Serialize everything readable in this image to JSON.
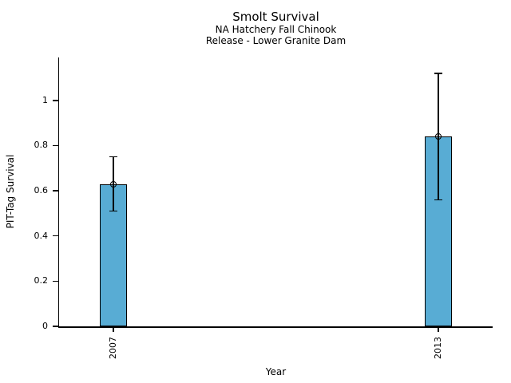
{
  "chart_data": {
    "type": "bar",
    "title": "Smolt Survival",
    "subtitle_line1": "NA Hatchery Fall Chinook",
    "subtitle_line2": "Release - Lower Granite Dam",
    "xlabel": "Year",
    "ylabel": "PIT-Tag Survival",
    "categories": [
      "2007",
      "2013"
    ],
    "x": [
      2007,
      2013
    ],
    "values": [
      0.63,
      0.84
    ],
    "error_low": [
      0.51,
      0.56
    ],
    "error_high": [
      0.75,
      1.12
    ],
    "marker": "open-circle",
    "bar_color": "#58ACD4",
    "bar_edge_color": "#000000",
    "error_color": "#000000",
    "xlim": [
      2006,
      2014
    ],
    "ylim": [
      0,
      1.19
    ],
    "yticks": [
      0,
      0.2,
      0.4,
      0.6,
      0.8,
      1
    ],
    "ytick_labels": [
      "0",
      "0.2",
      "0.4",
      "0.6",
      "0.8",
      "1"
    ],
    "bar_width_x": 0.5,
    "grid": false,
    "legend": false,
    "xtick_rotation_deg": -90,
    "background": "#ffffff"
  }
}
